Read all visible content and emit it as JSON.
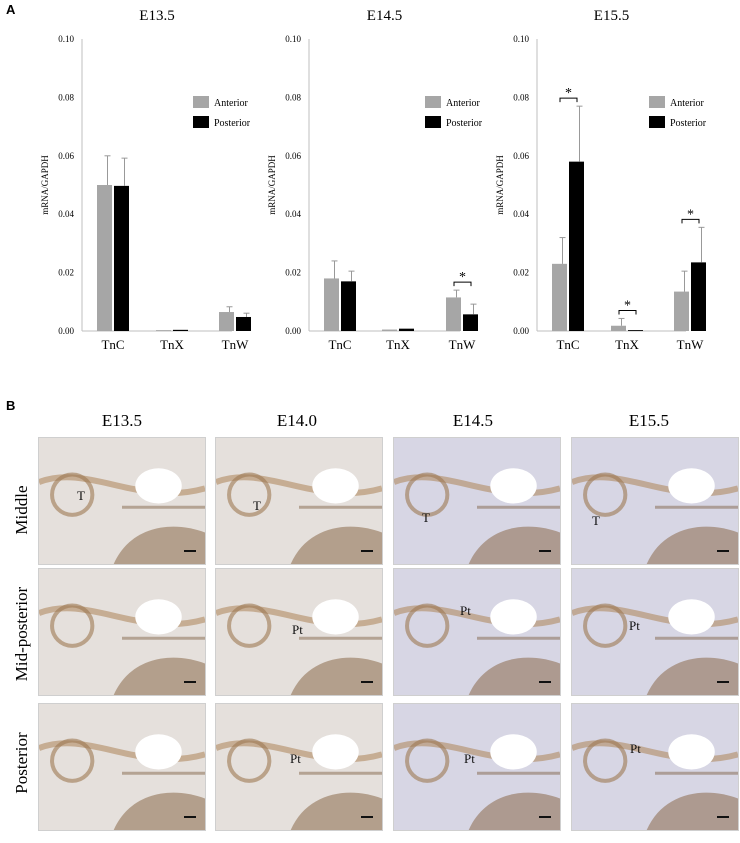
{
  "panel_a_letter": "A",
  "panel_b_letter": "B",
  "chart_data": [
    {
      "type": "bar",
      "title": "E13.5",
      "ylabel": "mRNA/GAPDH",
      "categories": [
        "TnC",
        "TnX",
        "TnW"
      ],
      "ylim": [
        0,
        0.1
      ],
      "yticks": [
        "0.00",
        "0.02",
        "0.04",
        "0.06",
        "0.08",
        "0.10"
      ],
      "legend": "top-right",
      "series": [
        {
          "name": "Anterior",
          "color": "#a6a6a6",
          "values": [
            0.05,
            0.0003,
            0.0065
          ],
          "errors": [
            0.01,
            0.0001,
            0.0018
          ]
        },
        {
          "name": "Posterior",
          "color": "#000000",
          "values": [
            0.0497,
            0.0004,
            0.0048
          ],
          "errors": [
            0.0095,
            0.0001,
            0.0013
          ]
        }
      ],
      "significance": []
    },
    {
      "type": "bar",
      "title": "E14.5",
      "ylabel": "mRNA/GAPDH",
      "categories": [
        "TnC",
        "TnX",
        "TnW"
      ],
      "ylim": [
        0,
        0.1
      ],
      "yticks": [
        "0.00",
        "0.02",
        "0.04",
        "0.06",
        "0.08",
        "0.10"
      ],
      "legend": "top-right",
      "series": [
        {
          "name": "Anterior",
          "color": "#a6a6a6",
          "values": [
            0.018,
            0.0005,
            0.0115
          ],
          "errors": [
            0.006,
            0.0002,
            0.0025
          ]
        },
        {
          "name": "Posterior",
          "color": "#000000",
          "values": [
            0.017,
            0.0008,
            0.0057
          ],
          "errors": [
            0.0035,
            0.0001,
            0.0035
          ]
        }
      ],
      "significance": [
        {
          "category": "TnW",
          "label": "*"
        }
      ]
    },
    {
      "type": "bar",
      "title": "E15.5",
      "ylabel": "mRNA/GAPDH",
      "categories": [
        "TnC",
        "TnX",
        "TnW"
      ],
      "ylim": [
        0,
        0.1
      ],
      "yticks": [
        "0.00",
        "0.02",
        "0.04",
        "0.06",
        "0.08",
        "0.10"
      ],
      "legend": "top-right",
      "series": [
        {
          "name": "Anterior",
          "color": "#a6a6a6",
          "values": [
            0.023,
            0.0018,
            0.0135
          ],
          "errors": [
            0.009,
            0.0025,
            0.007
          ]
        },
        {
          "name": "Posterior",
          "color": "#000000",
          "values": [
            0.058,
            0.0003,
            0.0235
          ],
          "errors": [
            0.019,
            0.0001,
            0.012
          ]
        }
      ],
      "significance": [
        {
          "category": "TnC",
          "label": "*"
        },
        {
          "category": "TnX",
          "label": "*"
        },
        {
          "category": "TnW",
          "label": "*"
        }
      ]
    }
  ],
  "panel_b": {
    "columns": [
      "E13.5",
      "E14.0",
      "E14.5",
      "E15.5"
    ],
    "rows": [
      "Middle",
      "Mid-posterior",
      "Posterior"
    ],
    "tissue_labels": [
      [
        "T",
        "T",
        "T",
        "T"
      ],
      [
        "",
        "Pt",
        "Pt",
        "Pt"
      ],
      [
        "",
        "Pt",
        "Pt",
        "Pt"
      ]
    ]
  }
}
